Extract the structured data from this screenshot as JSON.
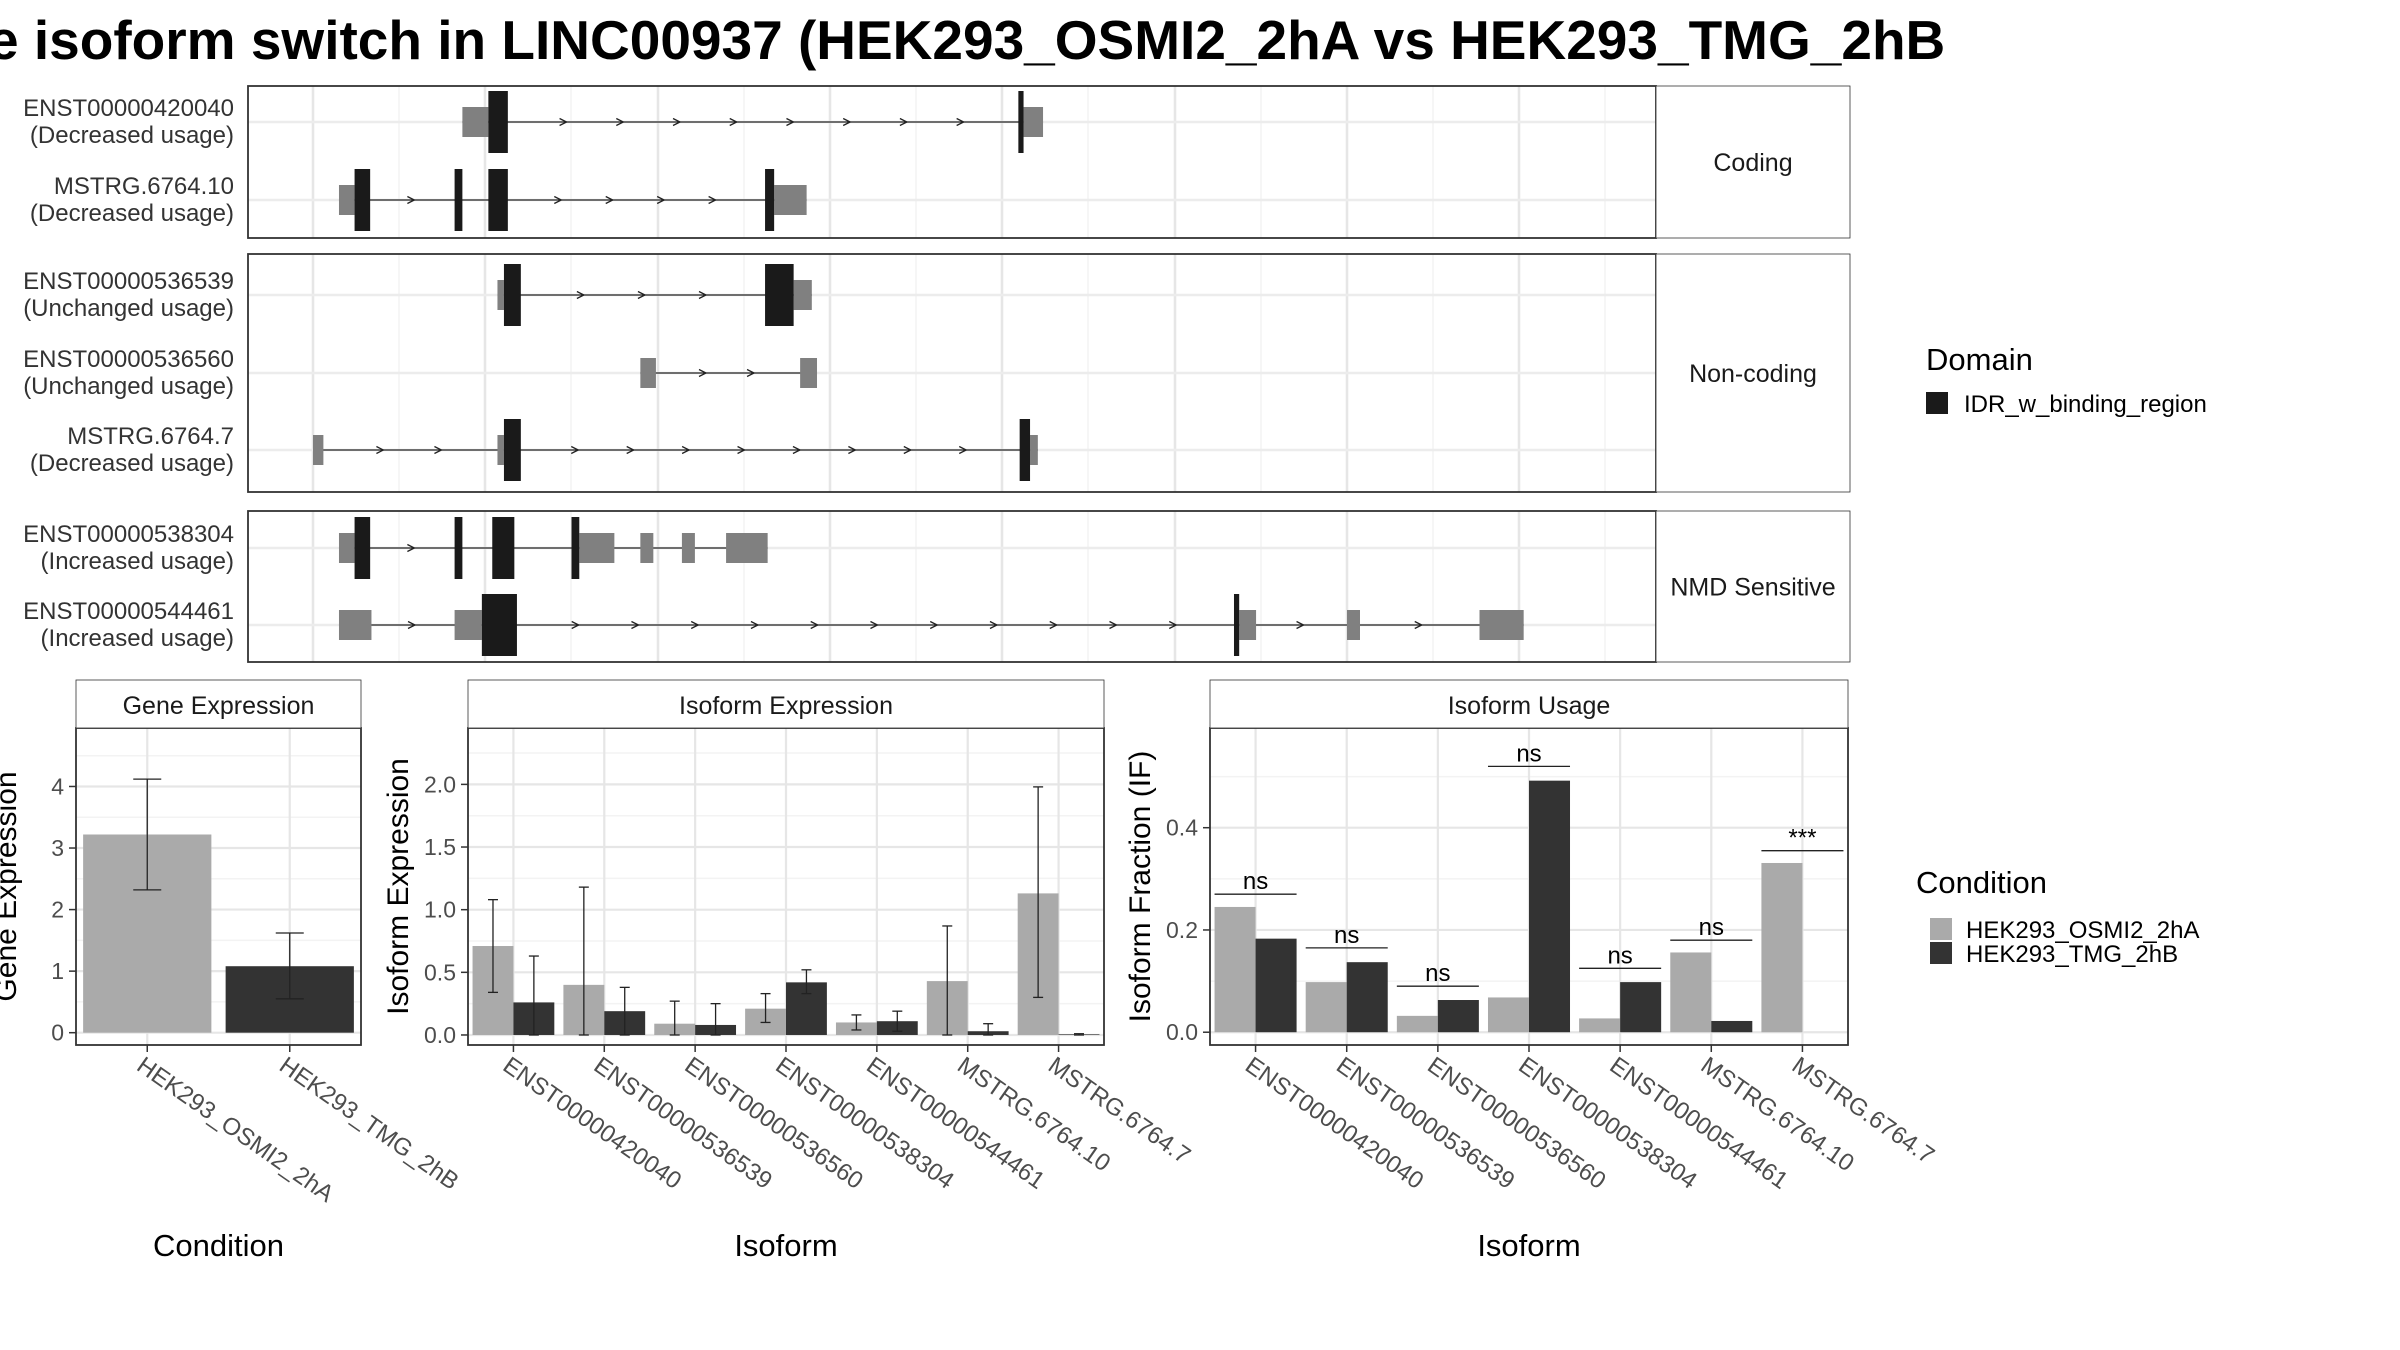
{
  "title": "e isoform switch in LINC00937 (HEK293_OSMI2_2hA vs HEK293_TMG_2hB",
  "colors": {
    "cond_a": "#aaaaaa",
    "cond_b": "#333333",
    "exon": "#808080",
    "domain": "#1a1a1a"
  },
  "structure": {
    "x_range": [
      0,
      1000
    ],
    "groups": [
      {
        "label": "Coding",
        "transcripts": [
          {
            "name": "ENST00000420040",
            "usage": "(Decreased usage)",
            "exons": [
              [
                115,
                135
              ],
              [
                547,
                562
              ]
            ],
            "domains": [
              [
                135,
                150
              ],
              [
                543,
                547
              ]
            ]
          },
          {
            "name": "MSTRG.6764.10",
            "usage": "(Decreased usage)",
            "exons": [
              [
                20,
                32
              ],
              [
                355,
                380
              ]
            ],
            "domains": [
              [
                32,
                44
              ],
              [
                109,
                115
              ],
              [
                135,
                150
              ],
              [
                348,
                355
              ]
            ]
          }
        ]
      },
      {
        "label": "Non-coding",
        "transcripts": [
          {
            "name": "ENST00000536539",
            "usage": "(Unchanged usage)",
            "exons": [
              [
                142,
                147
              ],
              [
                370,
                384
              ]
            ],
            "domains": [
              [
                147,
                160
              ],
              [
                348,
                370
              ]
            ]
          },
          {
            "name": "ENST00000536560",
            "usage": "(Unchanged usage)",
            "exons": [
              [
                252,
                264
              ],
              [
                375,
                388
              ]
            ],
            "domains": []
          },
          {
            "name": "MSTRG.6764.7",
            "usage": "(Decreased usage)",
            "exons": [
              [
                0,
                8
              ],
              [
                142,
                147
              ],
              [
                552,
                558
              ]
            ],
            "domains": [
              [
                147,
                160
              ],
              [
                544,
                552
              ]
            ]
          }
        ]
      },
      {
        "label": "NMD Sensitive",
        "transcripts": [
          {
            "name": "ENST00000538304",
            "usage": "(Increased usage)",
            "exons": [
              [
                20,
                32
              ],
              [
                205,
                232
              ],
              [
                252,
                262
              ],
              [
                284,
                294
              ],
              [
                318,
                350
              ]
            ],
            "domains": [
              [
                32,
                44
              ],
              [
                109,
                115
              ],
              [
                138,
                155
              ],
              [
                199,
                205
              ]
            ]
          },
          {
            "name": "ENST00000544461",
            "usage": "(Increased usage)",
            "exons": [
              [
                20,
                45
              ],
              [
                109,
                130
              ],
              [
                713,
                726
              ],
              [
                796,
                806
              ],
              [
                898,
                932
              ]
            ],
            "domains": [
              [
                130,
                157
              ],
              [
                709,
                713
              ]
            ]
          }
        ]
      }
    ],
    "legend": {
      "title": "Domain",
      "items": [
        "IDR_w_binding_region"
      ]
    }
  },
  "chart_data": [
    {
      "type": "bar",
      "title": "Gene Expression",
      "xlabel": "Condition",
      "ylabel": "Gene Expression",
      "categories": [
        "HEK293_OSMI2_2hA",
        "HEK293_TMG_2hB"
      ],
      "values": [
        3.22,
        1.08
      ],
      "error": [
        [
          2.32,
          4.12
        ],
        [
          0.55,
          1.62
        ]
      ],
      "ylim": [
        -0.2,
        4.95
      ],
      "yticks": [
        0,
        1,
        2,
        3,
        4
      ]
    },
    {
      "type": "bar",
      "title": "Isoform Expression",
      "xlabel": "Isoform",
      "ylabel": "Isoform Expression",
      "categories": [
        "ENST00000420040",
        "ENST00000536539",
        "ENST00000536560",
        "ENST00000538304",
        "ENST00000544461",
        "MSTRG.6764.10",
        "MSTRG.6764.7"
      ],
      "series": [
        {
          "name": "HEK293_OSMI2_2hA",
          "values": [
            0.71,
            0.4,
            0.09,
            0.21,
            0.1,
            0.43,
            1.13
          ],
          "error": [
            [
              0.34,
              1.08
            ],
            [
              0.0,
              1.18
            ],
            [
              0.0,
              0.27
            ],
            [
              0.1,
              0.33
            ],
            [
              0.04,
              0.16
            ],
            [
              0.0,
              0.87
            ],
            [
              0.3,
              1.98
            ]
          ]
        },
        {
          "name": "HEK293_TMG_2hB",
          "values": [
            0.26,
            0.19,
            0.08,
            0.42,
            0.11,
            0.03,
            0.005
          ],
          "error": [
            [
              0.0,
              0.63
            ],
            [
              0.0,
              0.38
            ],
            [
              0.0,
              0.25
            ],
            [
              0.33,
              0.52
            ],
            [
              0.03,
              0.19
            ],
            [
              0.0,
              0.09
            ],
            [
              0.0,
              0.01
            ]
          ]
        }
      ],
      "ylim": [
        -0.08,
        2.45
      ],
      "yticks": [
        0.0,
        0.5,
        1.0,
        1.5,
        2.0
      ]
    },
    {
      "type": "bar",
      "title": "Isoform Usage",
      "xlabel": "Isoform",
      "ylabel": "Isoform Fraction (IF)",
      "categories": [
        "ENST00000420040",
        "ENST00000536539",
        "ENST00000536560",
        "ENST00000538304",
        "ENST00000544461",
        "MSTRG.6764.10",
        "MSTRG.6764.7"
      ],
      "series": [
        {
          "name": "HEK293_OSMI2_2hA",
          "values": [
            0.245,
            0.098,
            0.032,
            0.068,
            0.027,
            0.156,
            0.331
          ]
        },
        {
          "name": "HEK293_TMG_2hB",
          "values": [
            0.183,
            0.137,
            0.063,
            0.492,
            0.098,
            0.022,
            0.0
          ]
        }
      ],
      "significance": [
        {
          "label": "ns",
          "y": 0.27
        },
        {
          "label": "ns",
          "y": 0.165
        },
        {
          "label": "ns",
          "y": 0.09
        },
        {
          "label": "ns",
          "y": 0.52
        },
        {
          "label": "ns",
          "y": 0.125
        },
        {
          "label": "ns",
          "y": 0.18
        },
        {
          "label": "***",
          "y": 0.355
        }
      ],
      "ylim": [
        -0.025,
        0.595
      ],
      "yticks": [
        0.0,
        0.2,
        0.4
      ]
    }
  ],
  "condition_legend": {
    "title": "Condition",
    "items": [
      "HEK293_OSMI2_2hA",
      "HEK293_TMG_2hB"
    ]
  }
}
